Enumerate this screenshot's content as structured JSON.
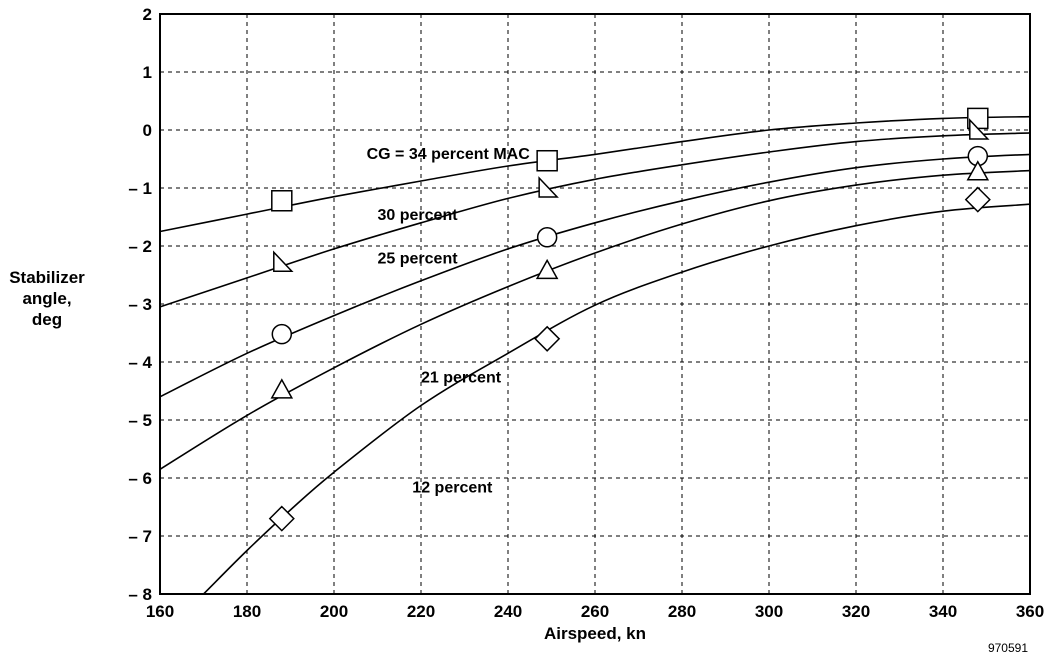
{
  "chart_data": {
    "type": "scatter",
    "xlabel": "Airspeed, kn",
    "ylabel_lines": [
      "Stabilizer",
      "angle,",
      "deg"
    ],
    "xlim": [
      160,
      360
    ],
    "ylim": [
      -8,
      2
    ],
    "x_ticks": [
      160,
      180,
      200,
      220,
      240,
      260,
      280,
      300,
      320,
      340,
      360
    ],
    "y_ticks": [
      {
        "value": 2,
        "label": "2"
      },
      {
        "value": 1,
        "label": "1"
      },
      {
        "value": 0,
        "label": "0"
      },
      {
        "value": -1,
        "label": "– 1"
      },
      {
        "value": -2,
        "label": "– 2"
      },
      {
        "value": -3,
        "label": "– 3"
      },
      {
        "value": -4,
        "label": "– 4"
      },
      {
        "value": -5,
        "label": "– 5"
      },
      {
        "value": -6,
        "label": "– 6"
      },
      {
        "value": -7,
        "label": "– 7"
      },
      {
        "value": -8,
        "label": "– 8"
      }
    ],
    "grid": true,
    "figure_id": "970591",
    "series": [
      {
        "name": "CG = 34 percent MAC",
        "marker": "square",
        "label_at": [
          245,
          -0.5
        ],
        "points": [
          [
            188,
            -1.22
          ],
          [
            249,
            -0.53
          ],
          [
            348,
            0.2
          ]
        ],
        "curve": [
          [
            160,
            -1.75
          ],
          [
            180,
            -1.45
          ],
          [
            200,
            -1.15
          ],
          [
            220,
            -0.88
          ],
          [
            240,
            -0.62
          ],
          [
            260,
            -0.42
          ],
          [
            280,
            -0.2
          ],
          [
            300,
            0.0
          ],
          [
            320,
            0.12
          ],
          [
            340,
            0.2
          ],
          [
            360,
            0.23
          ]
        ]
      },
      {
        "name": "30 percent",
        "marker": "triangle-right",
        "label_at": [
          210,
          -1.55
        ],
        "points": [
          [
            188,
            -2.28
          ],
          [
            249,
            -1.0
          ],
          [
            348,
            0.0
          ]
        ],
        "curve": [
          [
            160,
            -3.05
          ],
          [
            180,
            -2.55
          ],
          [
            200,
            -2.05
          ],
          [
            220,
            -1.6
          ],
          [
            240,
            -1.18
          ],
          [
            260,
            -0.85
          ],
          [
            280,
            -0.6
          ],
          [
            300,
            -0.38
          ],
          [
            320,
            -0.2
          ],
          [
            340,
            -0.1
          ],
          [
            360,
            -0.05
          ]
        ]
      },
      {
        "name": "25 percent",
        "marker": "circle",
        "label_at": [
          210,
          -2.3
        ],
        "points": [
          [
            188,
            -3.52
          ],
          [
            249,
            -1.85
          ],
          [
            348,
            -0.45
          ]
        ],
        "curve": [
          [
            160,
            -4.6
          ],
          [
            180,
            -3.85
          ],
          [
            200,
            -3.2
          ],
          [
            220,
            -2.6
          ],
          [
            240,
            -2.05
          ],
          [
            260,
            -1.6
          ],
          [
            280,
            -1.22
          ],
          [
            300,
            -0.9
          ],
          [
            320,
            -0.65
          ],
          [
            340,
            -0.5
          ],
          [
            360,
            -0.42
          ]
        ]
      },
      {
        "name": "21 percent",
        "marker": "triangle-up",
        "label_at": [
          220,
          -4.35
        ],
        "points": [
          [
            188,
            -4.48
          ],
          [
            249,
            -2.42
          ],
          [
            348,
            -0.72
          ]
        ],
        "curve": [
          [
            160,
            -5.85
          ],
          [
            180,
            -4.92
          ],
          [
            200,
            -4.1
          ],
          [
            220,
            -3.35
          ],
          [
            240,
            -2.7
          ],
          [
            260,
            -2.12
          ],
          [
            280,
            -1.62
          ],
          [
            300,
            -1.22
          ],
          [
            320,
            -0.95
          ],
          [
            340,
            -0.78
          ],
          [
            360,
            -0.7
          ]
        ]
      },
      {
        "name": "12 percent",
        "marker": "diamond",
        "label_at": [
          218,
          -6.25
        ],
        "points": [
          [
            188,
            -6.7
          ],
          [
            249,
            -3.6
          ],
          [
            348,
            -1.2
          ]
        ],
        "curve": [
          [
            170,
            -8.0
          ],
          [
            180,
            -7.25
          ],
          [
            190,
            -6.55
          ],
          [
            200,
            -5.9
          ],
          [
            220,
            -4.75
          ],
          [
            240,
            -3.85
          ],
          [
            260,
            -3.02
          ],
          [
            280,
            -2.45
          ],
          [
            300,
            -2.0
          ],
          [
            320,
            -1.65
          ],
          [
            340,
            -1.4
          ],
          [
            360,
            -1.28
          ]
        ]
      }
    ]
  }
}
